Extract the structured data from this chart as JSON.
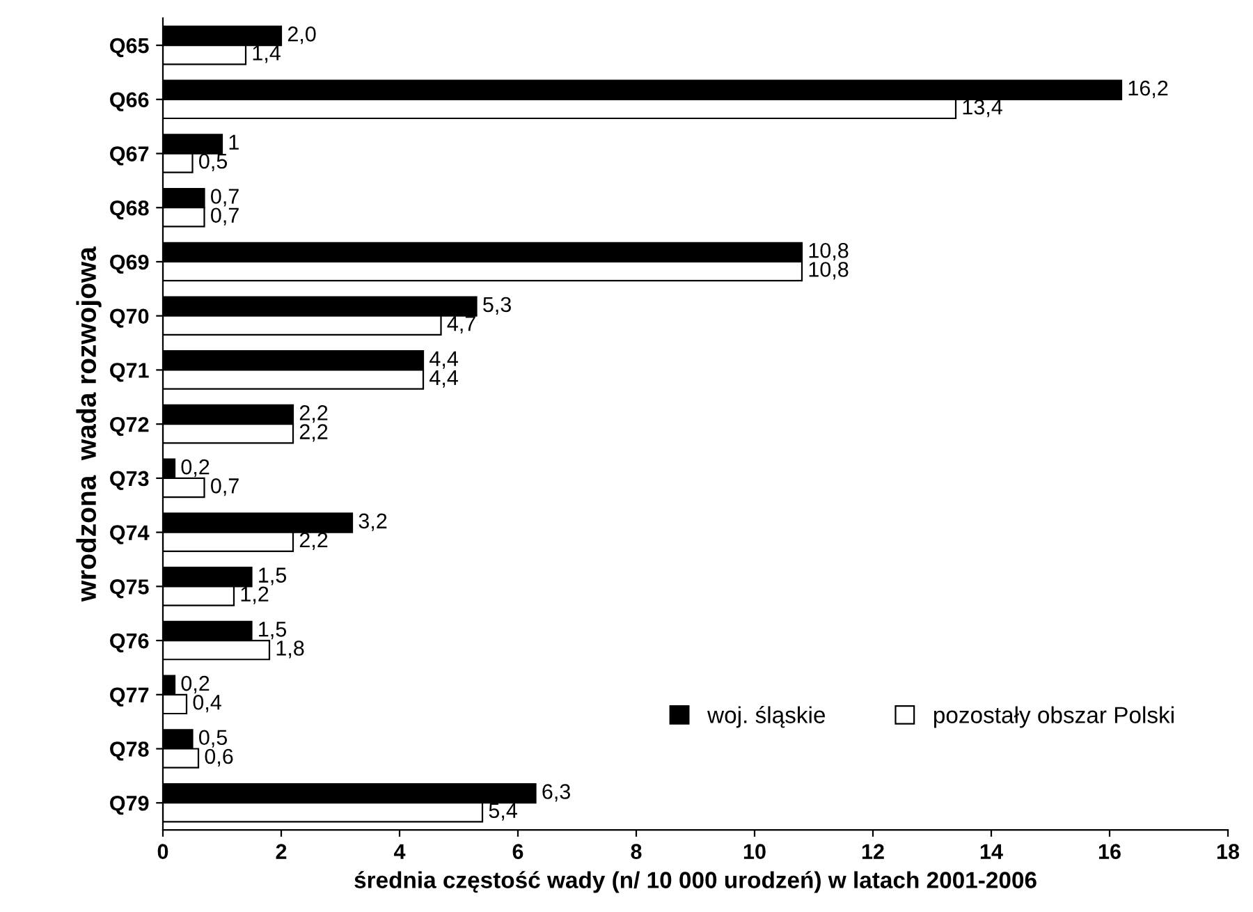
{
  "chart_data": {
    "type": "bar",
    "orientation": "horizontal",
    "xlabel": "średnia częstość wady (n/ 10 000 urodzeń) w latach 2001-2006",
    "ylabel": "wrodzona  wada rozwojowa",
    "categories": [
      "Q65",
      "Q66",
      "Q67",
      "Q68",
      "Q69",
      "Q70",
      "Q71",
      "Q72",
      "Q73",
      "Q74",
      "Q75",
      "Q76",
      "Q77",
      "Q78",
      "Q79"
    ],
    "series": [
      {
        "name": "woj. śląskie",
        "color": "#000000",
        "values": [
          2.0,
          16.2,
          1,
          0.7,
          10.8,
          5.3,
          4.4,
          2.2,
          0.2,
          3.2,
          1.5,
          1.5,
          0.2,
          0.5,
          6.3
        ],
        "value_labels": [
          "2,0",
          "16,2",
          "1",
          "0,7",
          "10,8",
          "5,3",
          "4,4",
          "2,2",
          "0,2",
          "3,2",
          "1,5",
          "1,5",
          "0,2",
          "0,5",
          "6,3"
        ]
      },
      {
        "name": "pozostały obszar Polski",
        "color": "#ffffff",
        "values": [
          1.4,
          13.4,
          0.5,
          0.7,
          10.8,
          4.7,
          4.4,
          2.2,
          0.7,
          2.2,
          1.2,
          1.8,
          0.4,
          0.6,
          5.4
        ],
        "value_labels": [
          "1,4",
          "13,4",
          "0,5",
          "0,7",
          "10,8",
          "4,7",
          "4,4",
          "2,2",
          "0,7",
          "2,2",
          "1,2",
          "1,8",
          "0,4",
          "0,6",
          "5,4"
        ]
      }
    ],
    "xlim": [
      0,
      18
    ],
    "xticks": [
      0,
      2,
      4,
      6,
      8,
      10,
      12,
      14,
      16,
      18
    ],
    "grid": false,
    "legend": "bottom right"
  }
}
